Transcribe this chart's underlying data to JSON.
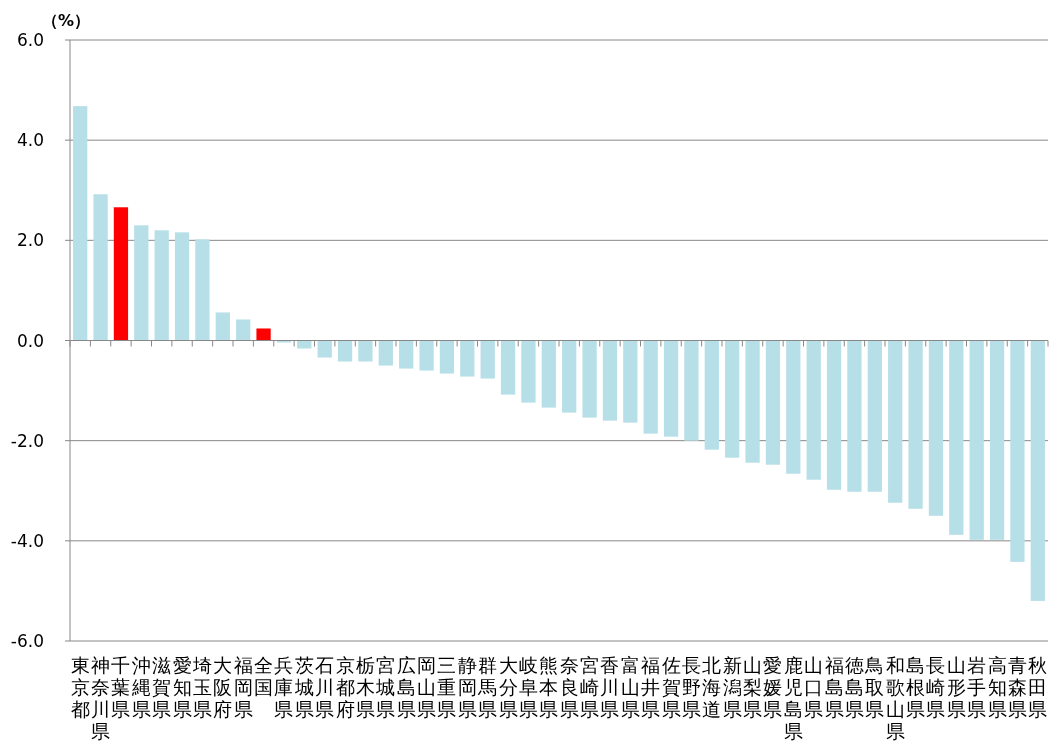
{
  "chart_data": {
    "type": "bar",
    "ylabel": "（%）",
    "categories": [
      "東京都",
      "神奈川県",
      "千葉県",
      "沖縄県",
      "滋賀県",
      "愛知県",
      "埼玉県",
      "大阪府",
      "福岡県",
      "全国",
      "兵庫県",
      "茨城県",
      "石川県",
      "京都府",
      "栃木県",
      "宮城県",
      "広島県",
      "岡山県",
      "三重県",
      "静岡県",
      "群馬県",
      "大分県",
      "岐阜県",
      "熊本県",
      "奈良県",
      "宮崎県",
      "香川県",
      "富山県",
      "福井県",
      "佐賀県",
      "長野県",
      "北海道",
      "新潟県",
      "山梨県",
      "愛媛県",
      "鹿児島県",
      "山口県",
      "福島県",
      "徳島県",
      "鳥取県",
      "和歌山県",
      "島根県",
      "長崎県",
      "山形県",
      "岩手県",
      "高知県",
      "青森県",
      "秋田県"
    ],
    "values": [
      4.68,
      2.92,
      2.66,
      2.3,
      2.2,
      2.16,
      2.02,
      0.56,
      0.42,
      0.24,
      -0.04,
      -0.16,
      -0.34,
      -0.42,
      -0.42,
      -0.5,
      -0.56,
      -0.6,
      -0.66,
      -0.72,
      -0.76,
      -1.08,
      -1.24,
      -1.34,
      -1.44,
      -1.54,
      -1.6,
      -1.64,
      -1.86,
      -1.92,
      -2.0,
      -2.18,
      -2.34,
      -2.44,
      -2.48,
      -2.66,
      -2.78,
      -2.98,
      -3.02,
      -3.02,
      -3.24,
      -3.36,
      -3.5,
      -3.88,
      -3.98,
      -3.98,
      -4.42,
      -5.2
    ],
    "colors": [
      "#b7dfe8",
      "#b7dfe8",
      "#ff0000",
      "#b7dfe8",
      "#b7dfe8",
      "#b7dfe8",
      "#b7dfe8",
      "#b7dfe8",
      "#b7dfe8",
      "#ff0000",
      "#b7dfe8",
      "#b7dfe8",
      "#b7dfe8",
      "#b7dfe8",
      "#b7dfe8",
      "#b7dfe8",
      "#b7dfe8",
      "#b7dfe8",
      "#b7dfe8",
      "#b7dfe8",
      "#b7dfe8",
      "#b7dfe8",
      "#b7dfe8",
      "#b7dfe8",
      "#b7dfe8",
      "#b7dfe8",
      "#b7dfe8",
      "#b7dfe8",
      "#b7dfe8",
      "#b7dfe8",
      "#b7dfe8",
      "#b7dfe8",
      "#b7dfe8",
      "#b7dfe8",
      "#b7dfe8",
      "#b7dfe8",
      "#b7dfe8",
      "#b7dfe8",
      "#b7dfe8",
      "#b7dfe8",
      "#b7dfe8",
      "#b7dfe8",
      "#b7dfe8",
      "#b7dfe8",
      "#b7dfe8",
      "#b7dfe8",
      "#b7dfe8",
      "#b7dfe8"
    ],
    "ylim": [
      -6,
      6
    ],
    "yticks": [
      {
        "value": -6,
        "label": "-6.0"
      },
      {
        "value": -4,
        "label": "-4.0"
      },
      {
        "value": -2,
        "label": "-2.0"
      },
      {
        "value": 0,
        "label": "0.0"
      },
      {
        "value": 2,
        "label": "2.0"
      },
      {
        "value": 4,
        "label": "4.0"
      },
      {
        "value": 6,
        "label": "6.0"
      }
    ],
    "grid": "y"
  }
}
